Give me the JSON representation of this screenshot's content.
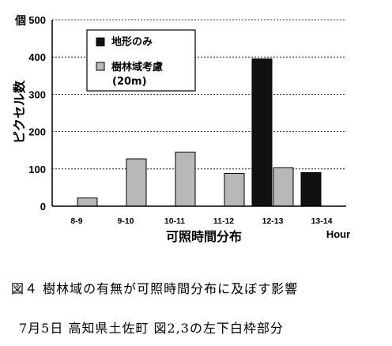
{
  "chart_data": {
    "type": "bar",
    "ylabel": "ピクセル数",
    "yunit": "個",
    "xlabel": "可照時間分布",
    "xunit": "Hour",
    "ylim": [
      0,
      500
    ],
    "yticks": [
      0,
      100,
      200,
      300,
      400,
      500
    ],
    "grid": "dashed horizontal",
    "legend_position": "top-left",
    "categories": [
      "8-9",
      "9-10",
      "10-11",
      "11-12",
      "12-13",
      "13-14"
    ],
    "series": [
      {
        "name": "地形のみ",
        "color": "#111111",
        "values": [
          0,
          0,
          0,
          0,
          395,
          90
        ]
      },
      {
        "name": "樹林域考慮 (20m)",
        "color": "#b8b8b8",
        "values": [
          22,
          127,
          145,
          88,
          103,
          0
        ]
      }
    ]
  },
  "legend": {
    "item1": "地形のみ",
    "item2_line1": "樹林域考慮",
    "item2_line2": "(20m)"
  },
  "caption": {
    "line1": "図４ 樹林域の有無が可照時間分布に及ぼす影響",
    "line2": "7月5日 高知県土佐町 図2,3の左下白枠部分"
  }
}
